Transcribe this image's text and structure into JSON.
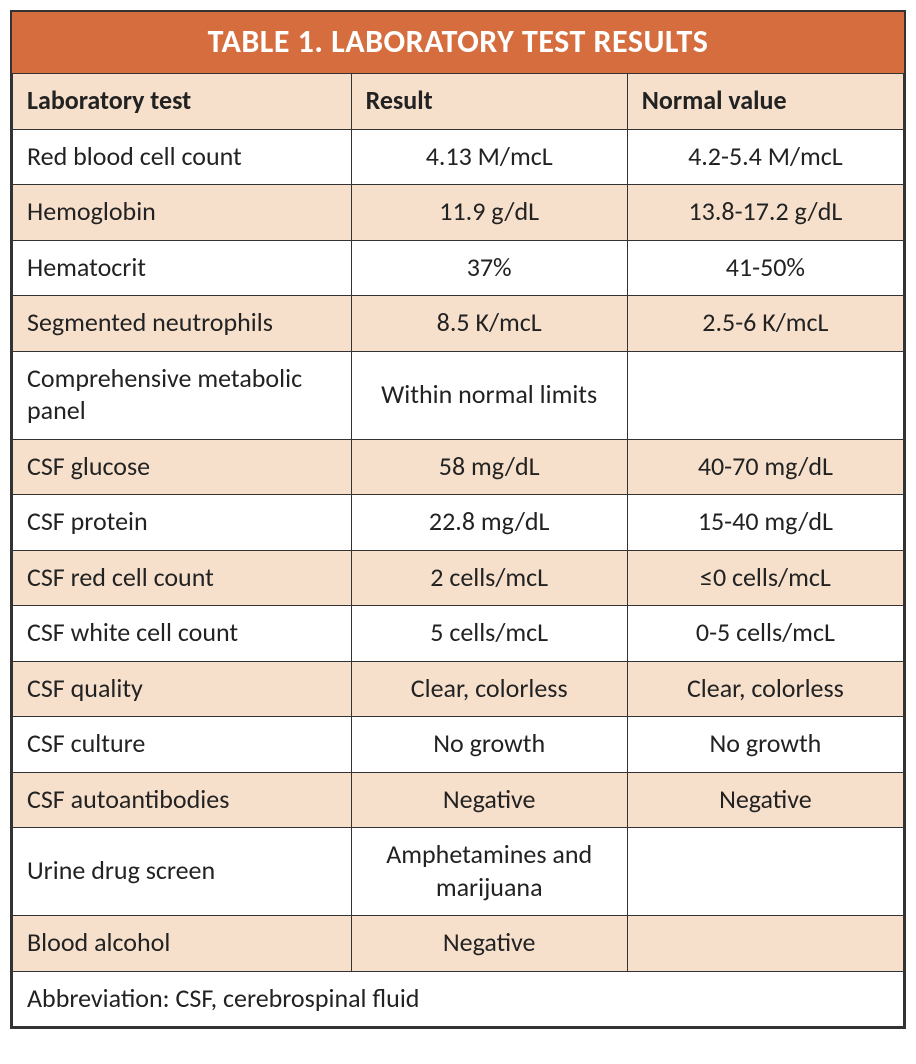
{
  "table": {
    "type": "table",
    "title": "TABLE 1. LABORATORY TEST RESULTS",
    "title_bg_color": "#d56d3f",
    "title_text_color": "#ffffff",
    "title_fontsize": 32,
    "header_bg_color": "#f6e0cc",
    "row_alt_bg_color": "#f6e0cc",
    "row_bg_color": "#ffffff",
    "border_color": "#333333",
    "text_color": "#222222",
    "cell_fontsize": 26,
    "column_widths_pct": [
      38,
      31,
      31
    ],
    "columns": [
      "Laboratory test",
      "Result",
      "Normal value"
    ],
    "rows": [
      {
        "test": "Red blood cell count",
        "result": "4.13 M/mcL",
        "normal": "4.2-5.4 M/mcL"
      },
      {
        "test": "Hemoglobin",
        "result": "11.9 g/dL",
        "normal": "13.8-17.2 g/dL"
      },
      {
        "test": "Hematocrit",
        "result": "37%",
        "normal": "41-50%"
      },
      {
        "test": "Segmented neutrophils",
        "result": "8.5 K/mcL",
        "normal": "2.5-6 K/mcL"
      },
      {
        "test": "Comprehensive metabolic panel",
        "result": "Within normal limits",
        "normal": ""
      },
      {
        "test": "CSF glucose",
        "result": "58 mg/dL",
        "normal": "40-70 mg/dL"
      },
      {
        "test": "CSF protein",
        "result": "22.8 mg/dL",
        "normal": "15-40 mg/dL"
      },
      {
        "test": "CSF red cell count",
        "result": "2 cells/mcL",
        "normal": "≤0 cells/mcL"
      },
      {
        "test": "CSF white cell count",
        "result": "5 cells/mcL",
        "normal": "0-5 cells/mcL"
      },
      {
        "test": "CSF quality",
        "result": "Clear, colorless",
        "normal": "Clear, colorless"
      },
      {
        "test": "CSF culture",
        "result": "No growth",
        "normal": "No growth"
      },
      {
        "test": "CSF autoantibodies",
        "result": "Negative",
        "normal": "Negative"
      },
      {
        "test": "Urine drug screen",
        "result": "Amphetamines and marijuana",
        "normal": ""
      },
      {
        "test": "Blood alcohol",
        "result": "Negative",
        "normal": ""
      }
    ],
    "footer": "Abbreviation: CSF, cerebrospinal fluid"
  }
}
